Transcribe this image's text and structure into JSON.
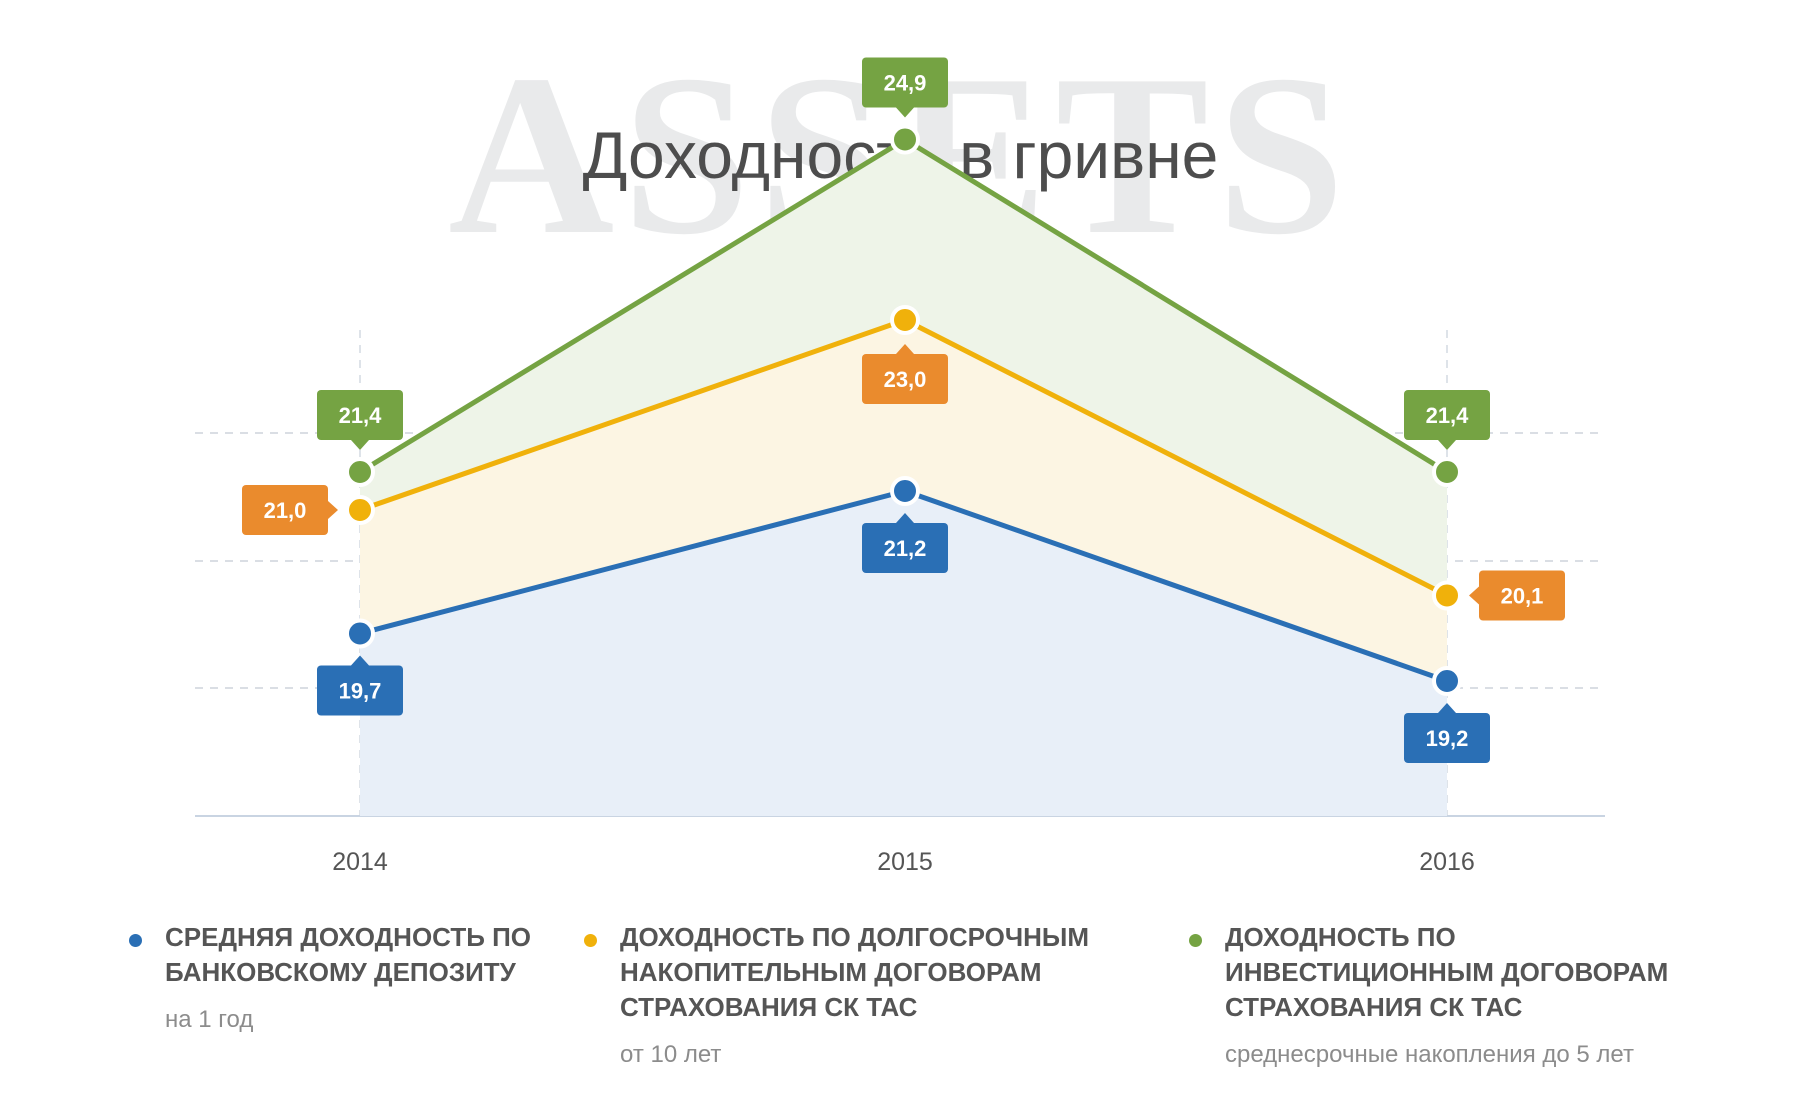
{
  "watermark": "ASSETS",
  "title": "Доходность в гривне",
  "unit": "%",
  "colors": {
    "blue": "#2a6fb5",
    "orange": "#f0b10b",
    "orange_tag": "#ea8b2d",
    "green": "#75a343"
  },
  "chart_data": {
    "type": "area",
    "title": "Доходность в гривне",
    "ylabel": "%",
    "categories": [
      "2014",
      "2015",
      "2016"
    ],
    "series": [
      {
        "name": "СРЕДНЯЯ ДОХОДНОСТЬ ПО БАНКОВСКОМУ ДЕПОЗИТУ",
        "values": [
          19.7,
          21.2,
          19.2
        ],
        "labels": [
          "19,7",
          "21,2",
          "19,2"
        ]
      },
      {
        "name": "ДОХОДНОСТЬ ПО ДОЛГОСРОЧНЫМ НАКОПИТЕЛЬНЫМ ДОГОВОРАМ СТРАХОВАНИЯ СК ТАС",
        "values": [
          21.0,
          23.0,
          20.1
        ],
        "labels": [
          "21,0",
          "23,0",
          "20,1"
        ]
      },
      {
        "name": "ДОХОДНОСТЬ ПО ИНВЕСТИЦИОННЫМ ДОГОВОРАМ СТРАХОВАНИЯ СК ТАС",
        "values": [
          21.4,
          24.9,
          21.4
        ],
        "labels": [
          "21,4",
          "24,9",
          "21,4"
        ]
      }
    ],
    "grid": true,
    "legend": "bottom"
  },
  "legend": [
    {
      "label": "СРЕДНЯЯ ДОХОДНОСТЬ ПО БАНКОВСКОМУ ДЕПОЗИТУ",
      "sub": "на 1 год"
    },
    {
      "label": "ДОХОДНОСТЬ ПО ДОЛГОСРОЧНЫМ НАКОПИТЕЛЬНЫМ ДОГОВОРАМ СТРАХОВАНИЯ СК ТАС",
      "sub": "от 10 лет"
    },
    {
      "label": "ДОХОДНОСТЬ ПО ИНВЕСТИЦИОННЫМ ДОГОВОРАМ СТРАХОВАНИЯ СК ТАС",
      "sub": "среднесрочные накопления до 5 лет"
    }
  ]
}
